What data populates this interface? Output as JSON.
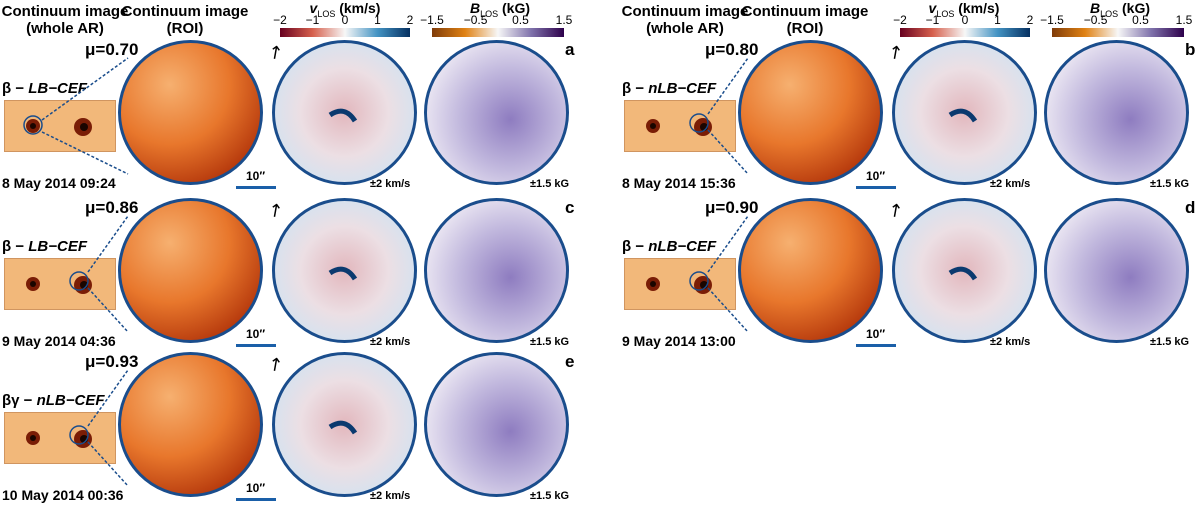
{
  "headers": {
    "whole_ar": "Continuum image",
    "whole_ar_sub": "(whole AR)",
    "roi": "Continuum image",
    "roi_sub": "(ROI)"
  },
  "colorbars": {
    "vlos": {
      "symbol": "v",
      "subscript": "LOS",
      "unit": "(km/s)",
      "ticks": [
        "−2",
        "−1",
        "0",
        "1",
        "2"
      ],
      "colors": [
        "#67001f",
        "#d6604d",
        "#f7f7f7",
        "#4393c3",
        "#053061"
      ]
    },
    "blos": {
      "symbol": "B",
      "subscript": "LOS",
      "unit": "(kG)",
      "ticks": [
        "−1.5",
        "−0.5",
        "0.5",
        "1.5"
      ],
      "colors": [
        "#7f3b08",
        "#e08214",
        "#f7f7f7",
        "#8073ac",
        "#2d004b"
      ]
    }
  },
  "scale_label": "10″",
  "vlos_range": "±2 km/s",
  "blos_range": "±1.5 kG",
  "panels": {
    "a": {
      "letter": "a",
      "mu": "μ=0.70",
      "cls_greek": "β − ",
      "cls_type": "LB−CEF",
      "date": "8 May 2014 09:24"
    },
    "b": {
      "letter": "b",
      "mu": "μ=0.80",
      "cls_greek": "β − ",
      "cls_type": "nLB−CEF",
      "date": "8 May 2014 15:36"
    },
    "c": {
      "letter": "c",
      "mu": "μ=0.86",
      "cls_greek": "β − ",
      "cls_type": "LB−CEF",
      "date": "9 May 2014 04:36"
    },
    "d": {
      "letter": "d",
      "mu": "μ=0.90",
      "cls_greek": "β − ",
      "cls_type": "nLB−CEF",
      "date": "9 May 2014 13:00"
    },
    "e": {
      "letter": "e",
      "mu": "μ=0.93",
      "cls_greek": "βγ − ",
      "cls_type": "nLB−CEF",
      "date": "10 May 2014 00:36"
    }
  }
}
